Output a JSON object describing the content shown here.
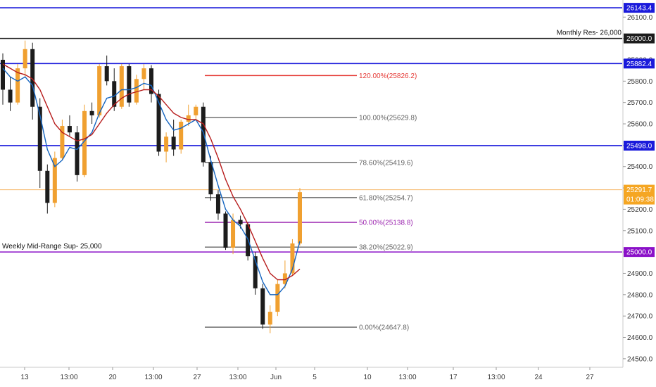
{
  "chart_data": {
    "type": "candlestick",
    "y_range": [
      24460,
      26180
    ],
    "x_ticks": [
      "13",
      "13:00",
      "20",
      "13:00",
      "27",
      "13:00",
      "Jun",
      "5",
      "10",
      "13:00",
      "17",
      "13:00",
      "24",
      "27"
    ],
    "y_ticks": [
      24500,
      24600,
      24700,
      24800,
      24900,
      25000,
      25100,
      25200,
      25300,
      25400,
      25500,
      25600,
      25700,
      25800,
      25900,
      26000,
      26100
    ],
    "y_tick_labels": [
      "24500.0",
      "24600.0",
      "24700.0",
      "24800.0",
      "24900.0",
      "25000.0",
      "25100.0",
      "25200.0",
      "25300.0",
      "25400.0",
      "25500.0",
      "25600.0",
      "25700.0",
      "25800.0",
      "25900.0",
      "26000.0",
      "26100.0"
    ],
    "colors": {
      "up_candle": "#f0a030",
      "down_candle": "#1c1c1c",
      "fast_ma": "#1565c0",
      "slow_ma": "#b71c1c",
      "blue_level": "#1a1adb",
      "purple_level": "#8a10c8",
      "fib_gray": "#666666",
      "fib_red": "#e53935",
      "fib_purple": "#9c27b0",
      "price_line": "#f7b96b",
      "price_tag": "#f5a623"
    },
    "candles": [
      [
        25900,
        25930,
        25690,
        25760
      ],
      [
        25760,
        25820,
        25660,
        25700
      ],
      [
        25700,
        25880,
        25690,
        25860
      ],
      [
        25860,
        25990,
        25820,
        25950
      ],
      [
        25950,
        25980,
        25620,
        25680
      ],
      [
        25680,
        25720,
        25300,
        25380
      ],
      [
        25380,
        25410,
        25180,
        25230
      ],
      [
        25230,
        25470,
        25210,
        25440
      ],
      [
        25440,
        25620,
        25430,
        25590
      ],
      [
        25590,
        25640,
        25540,
        25560
      ],
      [
        25560,
        25590,
        25330,
        25360
      ],
      [
        25360,
        25690,
        25350,
        25660
      ],
      [
        25660,
        25700,
        25600,
        25640
      ],
      [
        25640,
        25880,
        25630,
        25870
      ],
      [
        25870,
        25920,
        25780,
        25800
      ],
      [
        25800,
        25860,
        25660,
        25680
      ],
      [
        25680,
        25880,
        25670,
        25870
      ],
      [
        25870,
        25880,
        25680,
        25700
      ],
      [
        25700,
        25830,
        25690,
        25810
      ],
      [
        25810,
        25880,
        25760,
        25860
      ],
      [
        25860,
        25875,
        25700,
        25740
      ],
      [
        25740,
        25760,
        25450,
        25470
      ],
      [
        25470,
        25560,
        25420,
        25540
      ],
      [
        25540,
        25620,
        25450,
        25480
      ],
      [
        25480,
        25620,
        25460,
        25610
      ],
      [
        25610,
        25690,
        25590,
        25640
      ],
      [
        25640,
        25690,
        25620,
        25680
      ],
      [
        25680,
        25700,
        25400,
        25420
      ],
      [
        25420,
        25450,
        25240,
        25270
      ],
      [
        25270,
        25290,
        25150,
        25180
      ],
      [
        25180,
        25190,
        25010,
        25020
      ],
      [
        25020,
        25180,
        24990,
        25150
      ],
      [
        25150,
        25170,
        25110,
        25130
      ],
      [
        25130,
        25140,
        24960,
        24980
      ],
      [
        24980,
        25000,
        24800,
        24830
      ],
      [
        24830,
        24850,
        24640,
        24660
      ],
      [
        24660,
        24750,
        24620,
        24720
      ],
      [
        24720,
        24870,
        24700,
        24850
      ],
      [
        24850,
        24960,
        24830,
        24900
      ],
      [
        24900,
        25060,
        24890,
        25040
      ],
      [
        25040,
        25300,
        25030,
        25280
      ]
    ],
    "moving_averages": [
      {
        "name": "",
        "color_key": "fast_ma",
        "values": [
          25860,
          25820,
          25800,
          25820,
          25780,
          25640,
          25480,
          25400,
          25430,
          25490,
          25480,
          25520,
          25560,
          25650,
          25720,
          25730,
          25760,
          25760,
          25770,
          25790,
          25780,
          25700,
          25620,
          25570,
          25580,
          25600,
          25620,
          25560,
          25430,
          25310,
          25200,
          25150,
          25120,
          25060,
          24960,
          24860,
          24800,
          24800,
          24840,
          24920,
          25050
        ]
      },
      {
        "name": "",
        "color_key": "slow_ma",
        "values": [
          25880,
          25860,
          25840,
          25830,
          25810,
          25760,
          25680,
          25600,
          25560,
          25540,
          25520,
          25530,
          25550,
          25600,
          25650,
          25690,
          25720,
          25740,
          25750,
          25760,
          25760,
          25730,
          25690,
          25650,
          25630,
          25620,
          25620,
          25600,
          25530,
          25440,
          25340,
          25260,
          25200,
          25130,
          25050,
          24970,
          24900,
          24870,
          24870,
          24890,
          24920
        ]
      }
    ],
    "horizontal_levels": [
      {
        "value": 26143.4,
        "label": "26143.4",
        "color_key": "blue_level"
      },
      {
        "value": 26000.0,
        "label": "26000.0",
        "color_key": "down_candle"
      },
      {
        "value": 25882.4,
        "label": "25882.4",
        "color_key": "blue_level"
      },
      {
        "value": 25498.0,
        "label": "25498.0",
        "color_key": "blue_level"
      },
      {
        "value": 25000.0,
        "label": "25000.0",
        "color_key": "purple_level"
      }
    ],
    "current_price": {
      "value": 25291.7,
      "label": "25291.7",
      "countdown": "01:09:38"
    },
    "fibonacci": [
      {
        "label": "120.00%(25826.2)",
        "value": 25826.2,
        "color_key": "fib_red"
      },
      {
        "label": "100.00%(25629.8)",
        "value": 25629.8,
        "color_key": "fib_gray"
      },
      {
        "label": "78.60%(25419.6)",
        "value": 25419.6,
        "color_key": "fib_gray"
      },
      {
        "label": "61.80%(25254.7)",
        "value": 25254.7,
        "color_key": "fib_gray"
      },
      {
        "label": "50.00%(25138.8)",
        "value": 25138.8,
        "color_key": "fib_purple"
      },
      {
        "label": "38.20%(25022.9)",
        "value": 25022.9,
        "color_key": "fib_gray"
      },
      {
        "label": "0.00%(24647.8)",
        "value": 24647.8,
        "color_key": "fib_gray"
      }
    ],
    "annotations": [
      {
        "text": "Monthly Res- 26,000",
        "value": 26000.0
      },
      {
        "text": "Weekly Mid-Range Sup- 25,000",
        "value": 25000.0
      }
    ]
  }
}
